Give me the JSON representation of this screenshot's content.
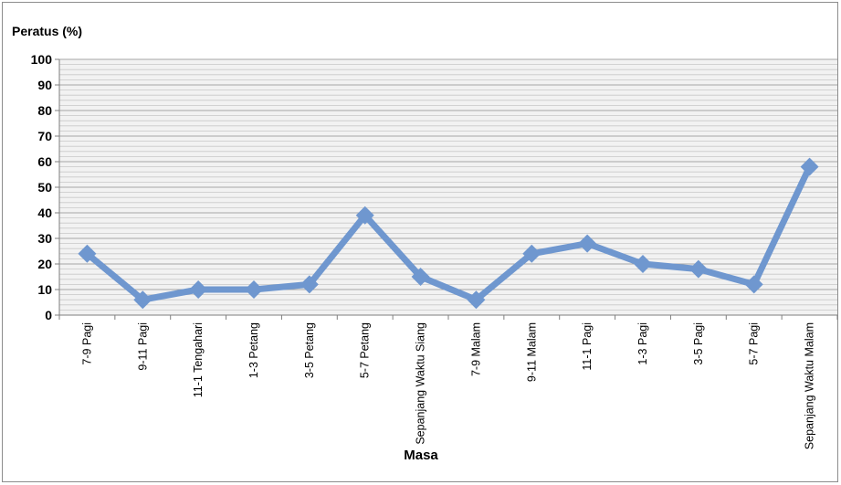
{
  "chart_data": {
    "type": "line",
    "ylabel": "Peratus (%)",
    "xlabel": "Masa",
    "ylim": [
      0,
      100
    ],
    "yticks": [
      0,
      10,
      20,
      30,
      40,
      50,
      60,
      70,
      80,
      90,
      100
    ],
    "grid": "horizontal",
    "categories": [
      "7-9 Pagi",
      "9-11 Pagi",
      "11-1 Tengahari",
      "1-3 Petang",
      "3-5 Petang",
      "5-7 Petang",
      "Sepanjang Waktu Siang",
      "7-9 Malam",
      "9-11 Malam",
      "11-1 Pagi",
      "1-3 Pagi",
      "3-5 Pagi",
      "5-7 Pagi",
      "Sepanjang Waktu Malam"
    ],
    "series": [
      {
        "color": "#6f97cf",
        "values": [
          24,
          6,
          10,
          10,
          12,
          39,
          15,
          6,
          24,
          28,
          20,
          18,
          12,
          58
        ]
      }
    ]
  }
}
